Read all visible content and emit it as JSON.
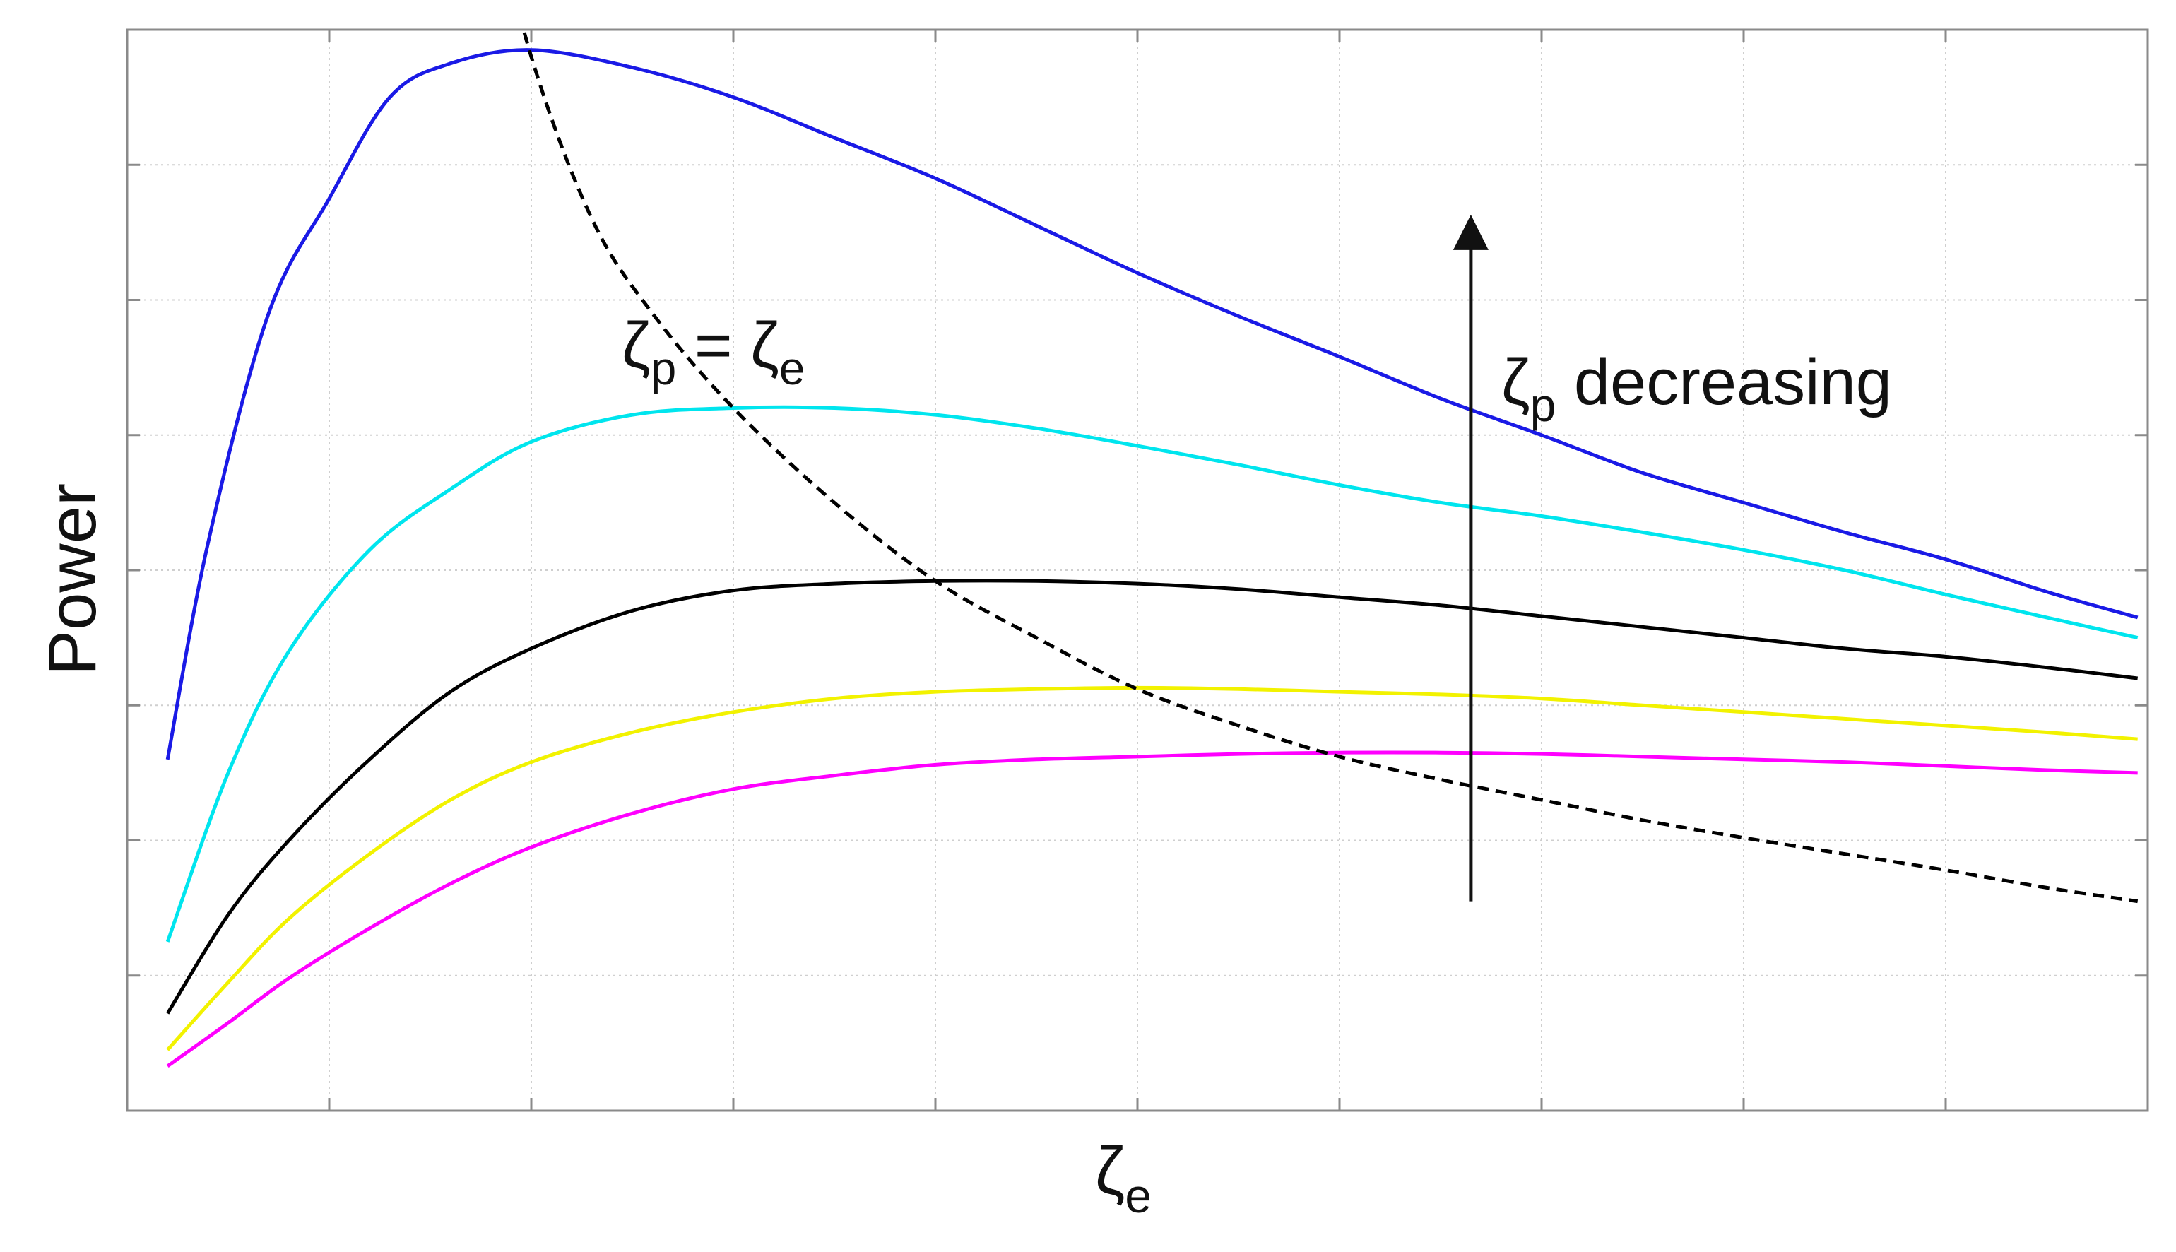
{
  "chart_data": {
    "type": "line",
    "xlabel": "ζ",
    "xlabel_sub": "e",
    "ylabel": "Power",
    "xlim": [
      0,
      10
    ],
    "ylim": [
      0,
      8
    ],
    "grid": true,
    "legend": "none",
    "x_ticks": [
      1,
      2,
      3,
      4,
      5,
      6,
      7,
      8,
      9,
      10
    ],
    "y_ticks": [
      1,
      2,
      3,
      4,
      5,
      6,
      7,
      8
    ],
    "series": [
      {
        "color": "#1a1ae6",
        "x": [
          0.2,
          0.4,
          0.7,
          1.0,
          1.3,
          1.6,
          2.0,
          2.5,
          3.0,
          3.5,
          4.0,
          4.5,
          5.0,
          5.5,
          6.0,
          6.5,
          7.0,
          7.5,
          8.0,
          8.5,
          9.0,
          9.5,
          9.95
        ],
        "y": [
          2.6,
          4.2,
          5.9,
          6.75,
          7.5,
          7.75,
          7.85,
          7.72,
          7.5,
          7.2,
          6.9,
          6.55,
          6.2,
          5.88,
          5.58,
          5.27,
          5.0,
          4.72,
          4.5,
          4.28,
          4.08,
          3.84,
          3.65
        ]
      },
      {
        "color": "#00e5ee",
        "x": [
          0.2,
          0.5,
          0.8,
          1.2,
          1.6,
          2.0,
          2.5,
          3.0,
          3.5,
          4.0,
          4.5,
          5.0,
          5.5,
          6.0,
          6.5,
          7.0,
          7.5,
          8.0,
          8.5,
          9.0,
          9.5,
          9.95
        ],
        "y": [
          1.25,
          2.5,
          3.4,
          4.15,
          4.6,
          4.95,
          5.15,
          5.2,
          5.2,
          5.15,
          5.05,
          4.92,
          4.78,
          4.63,
          4.5,
          4.4,
          4.28,
          4.15,
          4.0,
          3.82,
          3.65,
          3.5
        ]
      },
      {
        "color": "#000000",
        "x": [
          0.2,
          0.5,
          0.8,
          1.2,
          1.6,
          2.0,
          2.5,
          3.0,
          3.5,
          4.0,
          4.5,
          5.0,
          5.5,
          6.0,
          6.5,
          7.0,
          7.5,
          8.0,
          8.5,
          9.0,
          9.5,
          9.95
        ],
        "y": [
          0.72,
          1.45,
          2.0,
          2.6,
          3.1,
          3.42,
          3.7,
          3.85,
          3.9,
          3.92,
          3.92,
          3.9,
          3.86,
          3.8,
          3.74,
          3.66,
          3.58,
          3.5,
          3.42,
          3.36,
          3.28,
          3.2
        ]
      },
      {
        "color": "#f2f200",
        "x": [
          0.2,
          0.5,
          0.8,
          1.2,
          1.6,
          2.0,
          2.5,
          3.0,
          3.5,
          4.0,
          4.5,
          5.0,
          5.5,
          6.0,
          6.5,
          7.0,
          7.5,
          8.0,
          8.5,
          9.0,
          9.5,
          9.95
        ],
        "y": [
          0.45,
          0.95,
          1.42,
          1.9,
          2.3,
          2.58,
          2.8,
          2.95,
          3.05,
          3.1,
          3.12,
          3.13,
          3.12,
          3.1,
          3.08,
          3.05,
          3.0,
          2.95,
          2.9,
          2.85,
          2.8,
          2.75
        ]
      },
      {
        "color": "#ff00ff",
        "x": [
          0.2,
          0.5,
          0.8,
          1.2,
          1.6,
          2.0,
          2.5,
          3.0,
          3.5,
          4.0,
          4.5,
          5.0,
          5.5,
          6.0,
          6.5,
          7.0,
          7.5,
          8.0,
          8.5,
          9.0,
          9.5,
          9.95
        ],
        "y": [
          0.33,
          0.65,
          0.98,
          1.35,
          1.68,
          1.95,
          2.2,
          2.38,
          2.48,
          2.56,
          2.6,
          2.62,
          2.64,
          2.65,
          2.65,
          2.64,
          2.62,
          2.6,
          2.58,
          2.55,
          2.52,
          2.5
        ]
      }
    ],
    "reference_curve": {
      "style": "dashed",
      "color": "#000000",
      "x": [
        1.75,
        2.0,
        2.3,
        2.6,
        3.0,
        3.5,
        4.0,
        4.5,
        5.0,
        5.5,
        6.0,
        6.5,
        7.0,
        7.5,
        8.0,
        8.5,
        9.0,
        9.5,
        9.95
      ],
      "y": [
        9.3,
        7.8,
        6.6,
        5.9,
        5.2,
        4.5,
        3.92,
        3.5,
        3.12,
        2.85,
        2.62,
        2.45,
        2.3,
        2.15,
        2.02,
        1.9,
        1.78,
        1.65,
        1.55
      ],
      "label": {
        "text": "ζ",
        "sub": "p",
        "eq": " = ζ",
        "sub2": "e"
      }
    },
    "arrow": {
      "x": 6.65,
      "y_from": 1.55,
      "y_to": 6.5,
      "label": {
        "text": "ζ",
        "sub": "p",
        "rest": " decreasing"
      }
    }
  }
}
